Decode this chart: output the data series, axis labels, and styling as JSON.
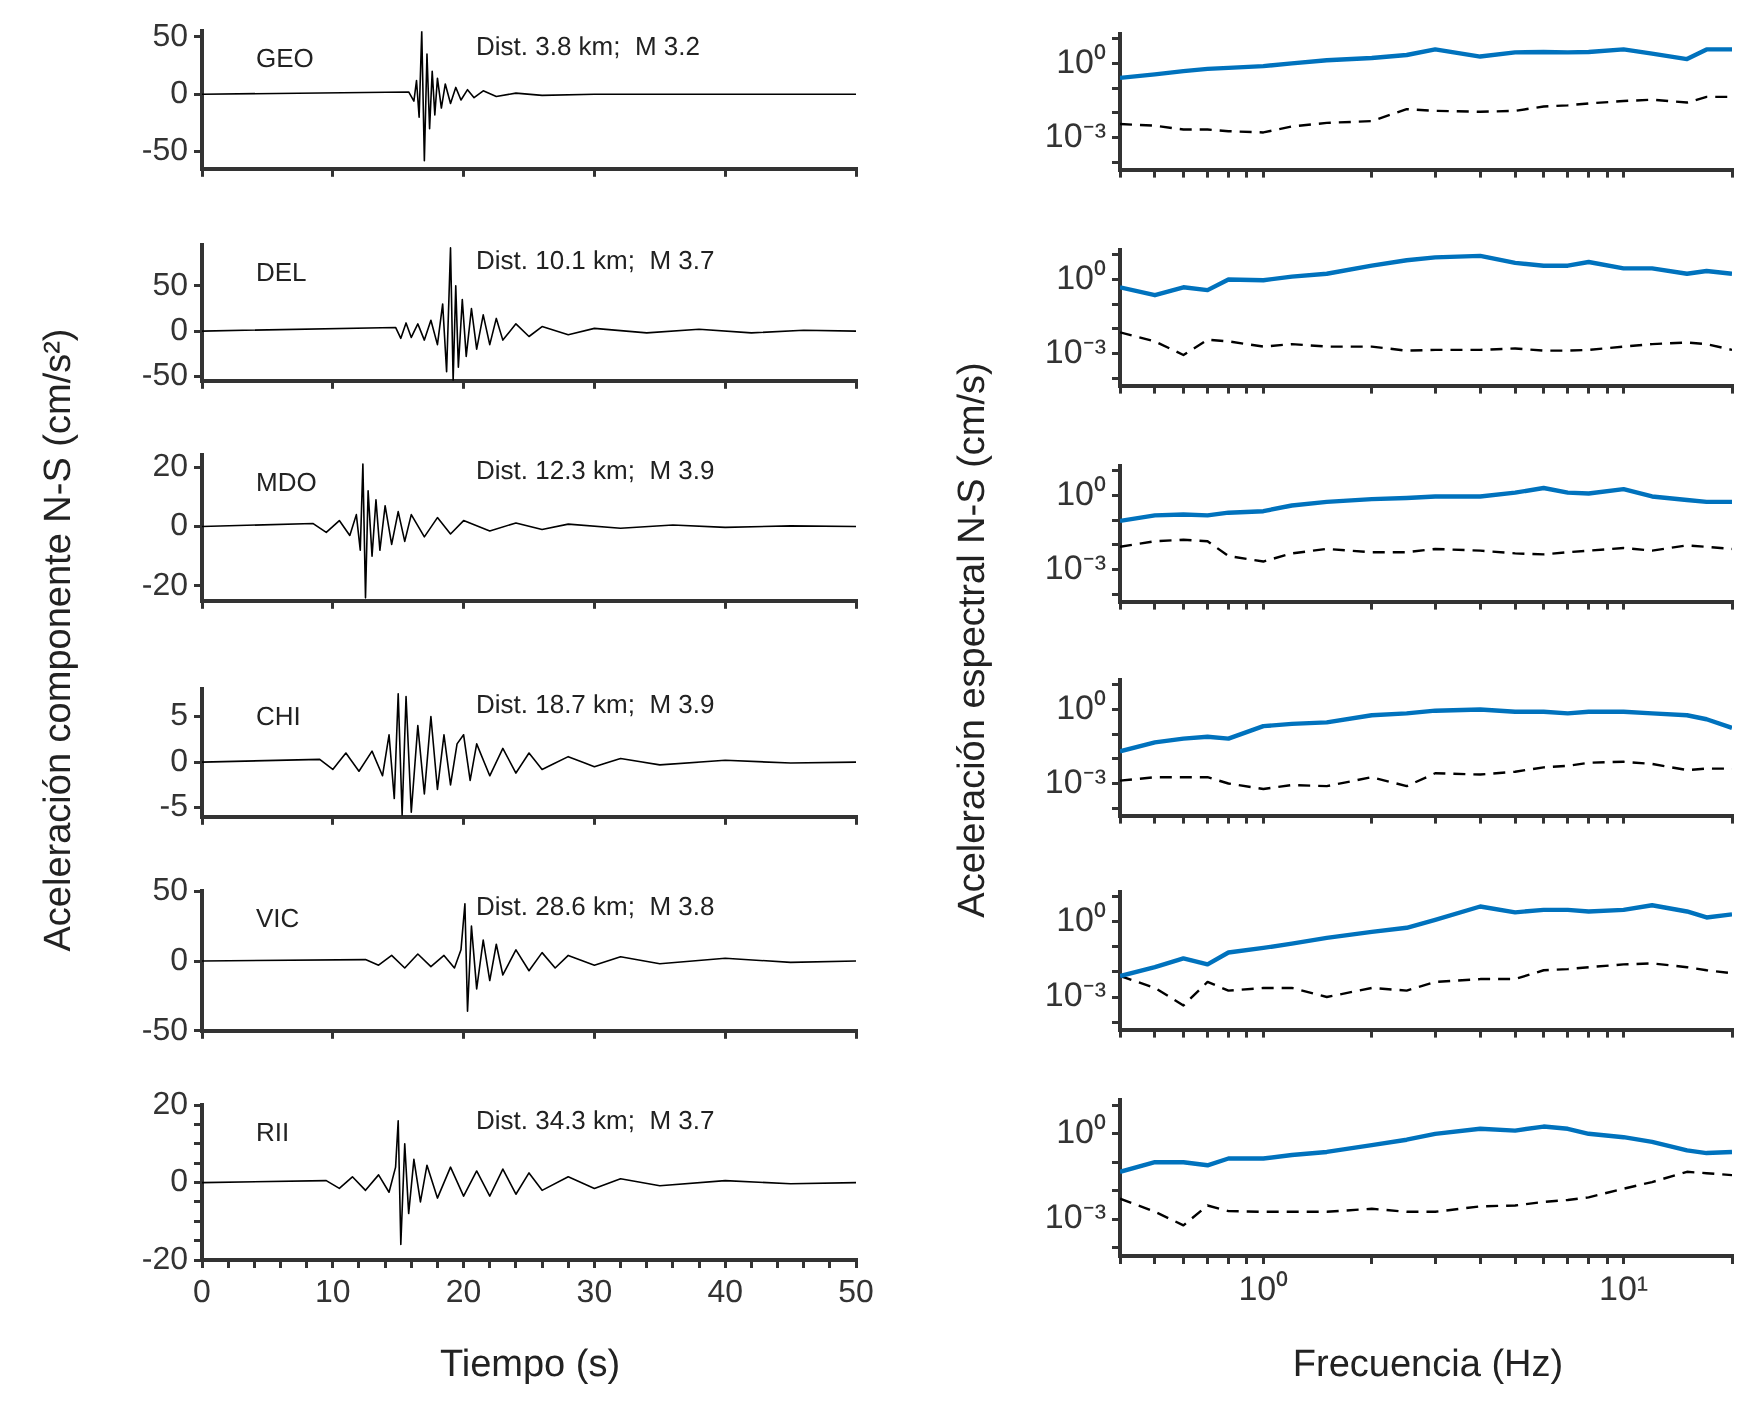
{
  "chart_data": [
    {
      "type": "line",
      "ylabel": "Aceleración componente N-S (cm/s²)",
      "annotations": [
        "GEO",
        "Dist. 3.8 km;  M 3.2"
      ],
      "tick_labels": "y",
      "grid": false,
      "legend": false,
      "marker": "none",
      "xlim": [
        0,
        50
      ],
      "xticks": [
        {
          "value": 0,
          "label": null
        },
        {
          "value": 10,
          "label": null
        },
        {
          "value": 20,
          "label": null
        },
        {
          "value": 30,
          "label": null
        },
        {
          "value": 40,
          "label": null
        },
        {
          "value": 50,
          "label": null
        }
      ],
      "ylim": [
        -65,
        55
      ],
      "yticks": [
        -50,
        0,
        50
      ],
      "x": [
        0,
        15.8,
        16.2,
        16.4,
        16.6,
        16.8,
        17.0,
        17.2,
        17.4,
        17.6,
        17.8,
        18.0,
        18.3,
        18.6,
        19.0,
        19.4,
        19.8,
        20.3,
        20.8,
        21.5,
        22.5,
        24,
        26,
        30,
        40,
        50
      ],
      "series": [
        {
          "color": "#000000",
          "values": [
            0,
            2,
            -6,
            12,
            -20,
            55,
            -58,
            35,
            -30,
            20,
            -18,
            14,
            -12,
            9,
            -8,
            6,
            -5,
            4,
            -3,
            3,
            -2,
            1,
            -1,
            0,
            0,
            0
          ]
        }
      ]
    },
    {
      "type": "line",
      "annotations": [
        "DEL",
        "Dist. 10.1 km;  M 3.7"
      ],
      "tick_labels": "y",
      "grid": false,
      "legend": false,
      "marker": "none",
      "xlim": [
        0,
        50
      ],
      "xticks": [
        {
          "value": 0,
          "label": null
        },
        {
          "value": 10,
          "label": null
        },
        {
          "value": 20,
          "label": null
        },
        {
          "value": 30,
          "label": null
        },
        {
          "value": 40,
          "label": null
        },
        {
          "value": 50,
          "label": null
        }
      ],
      "ylim": [
        -55,
        95
      ],
      "yticks": [
        -50,
        0,
        50
      ],
      "x": [
        0,
        14.8,
        15.2,
        15.6,
        16,
        16.5,
        17,
        17.5,
        18,
        18.4,
        18.7,
        19.0,
        19.2,
        19.4,
        19.6,
        19.9,
        20.2,
        20.6,
        21,
        21.5,
        22,
        22.5,
        23,
        24,
        25,
        26,
        28,
        30,
        34,
        38,
        42,
        46,
        50
      ],
      "series": [
        {
          "color": "#000000",
          "values": [
            0,
            4,
            -8,
            9,
            -7,
            8,
            -10,
            12,
            -15,
            30,
            -45,
            92,
            -55,
            50,
            -40,
            35,
            -28,
            25,
            -20,
            18,
            -15,
            14,
            -10,
            8,
            -6,
            5,
            -4,
            3,
            -2,
            2,
            -2,
            1,
            0
          ]
        }
      ]
    },
    {
      "type": "line",
      "annotations": [
        "MDO",
        "Dist. 12.3 km;  M 3.9"
      ],
      "tick_labels": "y",
      "grid": false,
      "legend": false,
      "marker": "none",
      "xlim": [
        0,
        50
      ],
      "xticks": [
        {
          "value": 0,
          "label": null
        },
        {
          "value": 10,
          "label": null
        },
        {
          "value": 20,
          "label": null
        },
        {
          "value": 30,
          "label": null
        },
        {
          "value": 40,
          "label": null
        },
        {
          "value": 50,
          "label": null
        }
      ],
      "ylim": [
        -25,
        24
      ],
      "yticks": [
        -20,
        0,
        20
      ],
      "x": [
        0,
        8.5,
        9.5,
        10.5,
        11.3,
        11.8,
        12.1,
        12.3,
        12.5,
        12.7,
        13,
        13.3,
        13.6,
        14,
        14.5,
        15,
        15.5,
        16,
        17,
        18,
        19,
        20,
        22,
        24,
        26,
        28,
        32,
        36,
        40,
        45,
        50
      ],
      "series": [
        {
          "color": "#000000",
          "values": [
            0,
            1,
            -2,
            2,
            -3,
            4,
            -8,
            21,
            -24,
            12,
            -10,
            9,
            -8,
            7,
            -6,
            5,
            -5,
            4,
            -3.5,
            3,
            -2.5,
            2,
            -1.5,
            1.2,
            -1,
            0.8,
            -0.6,
            0.5,
            -0.3,
            0.2,
            0
          ]
        }
      ]
    },
    {
      "type": "line",
      "annotations": [
        "CHI",
        "Dist. 18.7 km;  M 3.9"
      ],
      "tick_labels": "y",
      "grid": false,
      "legend": false,
      "marker": "none",
      "xlim": [
        0,
        50
      ],
      "xticks": [
        {
          "value": 0,
          "label": null
        },
        {
          "value": 10,
          "label": null
        },
        {
          "value": 20,
          "label": null
        },
        {
          "value": 30,
          "label": null
        },
        {
          "value": 40,
          "label": null
        },
        {
          "value": 50,
          "label": null
        }
      ],
      "ylim": [
        -6,
        8
      ],
      "yticks": [
        -5,
        0,
        5
      ],
      "x": [
        0,
        9,
        10,
        11,
        12,
        13,
        13.8,
        14.3,
        14.7,
        15.0,
        15.3,
        15.6,
        16,
        16.5,
        17,
        17.5,
        18,
        18.5,
        19,
        19.5,
        20,
        20.5,
        21,
        22,
        23,
        24,
        25,
        26,
        28,
        30,
        32,
        35,
        40,
        45,
        50
      ],
      "series": [
        {
          "color": "#000000",
          "values": [
            0,
            0.3,
            -0.8,
            1,
            -1,
            1.2,
            -1.5,
            3,
            -4,
            7.5,
            -5.8,
            7.2,
            -5.5,
            4,
            -3.5,
            5,
            -3,
            3,
            -2.5,
            2,
            3,
            -2,
            2,
            -1.5,
            1.5,
            -1.2,
            1,
            -0.8,
            0.6,
            -0.5,
            0.4,
            -0.3,
            0.2,
            -0.1,
            0
          ]
        }
      ]
    },
    {
      "type": "line",
      "annotations": [
        "VIC",
        "Dist. 28.6 km;  M 3.8"
      ],
      "tick_labels": "y",
      "grid": false,
      "legend": false,
      "marker": "none",
      "xlim": [
        0,
        50
      ],
      "xticks": [
        {
          "value": 0,
          "label": null
        },
        {
          "value": 10,
          "label": null
        },
        {
          "value": 20,
          "label": null
        },
        {
          "value": 30,
          "label": null
        },
        {
          "value": 40,
          "label": null
        },
        {
          "value": 50,
          "label": null
        }
      ],
      "ylim": [
        -50,
        50
      ],
      "yticks": [
        -50,
        0,
        50
      ],
      "x": [
        0,
        12.5,
        13.5,
        14.5,
        15.5,
        16.5,
        17.5,
        18.5,
        19.3,
        19.8,
        20.1,
        20.3,
        20.6,
        21,
        21.5,
        22,
        22.5,
        23,
        24,
        25,
        26,
        27,
        28,
        30,
        32,
        35,
        40,
        45,
        50
      ],
      "series": [
        {
          "color": "#000000",
          "values": [
            0,
            1,
            -3,
            4,
            -5,
            5,
            -4,
            4,
            -5,
            8,
            41,
            -36,
            25,
            -20,
            15,
            -14,
            12,
            -10,
            8,
            -7,
            6,
            -5,
            4,
            -3,
            3,
            -2,
            2,
            -1,
            0
          ]
        }
      ]
    },
    {
      "type": "line",
      "xlabel": "Tiempo (s)",
      "annotations": [
        "RII",
        "Dist. 34.3 km;  M 3.7"
      ],
      "grid": false,
      "legend": false,
      "marker": "none",
      "xlim": [
        0,
        50
      ],
      "xticks": [
        0,
        {
          "value": 2,
          "label": null
        },
        {
          "value": 4,
          "label": null
        },
        {
          "value": 6,
          "label": null
        },
        {
          "value": 8,
          "label": null
        },
        10,
        {
          "value": 12,
          "label": null
        },
        {
          "value": 14,
          "label": null
        },
        {
          "value": 16,
          "label": null
        },
        {
          "value": 18,
          "label": null
        },
        20,
        {
          "value": 22,
          "label": null
        },
        {
          "value": 24,
          "label": null
        },
        {
          "value": 26,
          "label": null
        },
        {
          "value": 28,
          "label": null
        },
        30,
        {
          "value": 32,
          "label": null
        },
        {
          "value": 34,
          "label": null
        },
        {
          "value": 36,
          "label": null
        },
        {
          "value": 38,
          "label": null
        },
        40,
        {
          "value": 42,
          "label": null
        },
        {
          "value": 44,
          "label": null
        },
        {
          "value": 46,
          "label": null
        },
        {
          "value": 48,
          "label": null
        },
        50
      ],
      "ylim": [
        -20,
        20
      ],
      "yticks": [
        -20,
        {
          "value": -15,
          "label": null
        },
        {
          "value": -10,
          "label": null
        },
        {
          "value": -5,
          "label": null
        },
        0,
        {
          "value": 5,
          "label": null
        },
        {
          "value": 10,
          "label": null
        },
        {
          "value": 15,
          "label": null
        },
        20
      ],
      "x": [
        0,
        9.5,
        10.5,
        11.5,
        12.5,
        13.5,
        14.3,
        14.8,
        15.0,
        15.2,
        15.5,
        15.8,
        16.2,
        16.7,
        17.2,
        18,
        19,
        20,
        21,
        22,
        23,
        24,
        25,
        26,
        28,
        30,
        32,
        35,
        40,
        45,
        50
      ],
      "series": [
        {
          "color": "#000000",
          "values": [
            0,
            0.5,
            -1.5,
            1.5,
            -2,
            2,
            -2.5,
            4,
            16,
            -16,
            10,
            -8,
            6,
            -5,
            4.5,
            -4,
            4,
            -3.5,
            3,
            -3.5,
            3.5,
            -3,
            2.5,
            -2,
            1.5,
            -1.5,
            1,
            -0.8,
            0.5,
            -0.3,
            0
          ]
        }
      ]
    },
    {
      "type": "line",
      "ylabel": "Aceleración espectral N-S  (cm/s)",
      "log": "xy",
      "tick_labels": "y",
      "grid": false,
      "legend": false,
      "marker": "none",
      "xlim": [
        0.4,
        20
      ],
      "xticks": [
        {
          "value": 0.4,
          "label": null
        },
        {
          "value": 0.5,
          "label": null
        },
        {
          "value": 0.6,
          "label": null
        },
        {
          "value": 0.7,
          "label": null
        },
        {
          "value": 0.8,
          "label": null
        },
        {
          "value": 0.9,
          "label": null
        },
        {
          "value": 1,
          "label": null
        },
        {
          "value": 2,
          "label": null
        },
        {
          "value": 3,
          "label": null
        },
        {
          "value": 4,
          "label": null
        },
        {
          "value": 5,
          "label": null
        },
        {
          "value": 6,
          "label": null
        },
        {
          "value": 7,
          "label": null
        },
        {
          "value": 8,
          "label": null
        },
        {
          "value": 9,
          "label": null
        },
        {
          "value": 10,
          "label": null
        },
        {
          "value": 20,
          "label": null
        }
      ],
      "ylim": [
        5e-05,
        15
      ],
      "yticks": [
        {
          "value": 0.0001,
          "label": null
        },
        {
          "value": 0.001,
          "label": "10⁻³"
        },
        {
          "value": 0.01,
          "label": null
        },
        {
          "value": 0.1,
          "label": null
        },
        {
          "value": 1,
          "label": "10⁰"
        },
        {
          "value": 10,
          "label": null
        }
      ],
      "x": [
        0.4,
        0.5,
        0.6,
        0.7,
        0.8,
        1,
        1.2,
        1.5,
        2,
        2.5,
        3,
        4,
        5,
        6,
        7,
        8,
        10,
        12,
        15,
        17,
        20
      ],
      "series": [
        {
          "color": "#0072bd",
          "line_style": "solid",
          "values": [
            0.26,
            0.36,
            0.49,
            0.6,
            0.66,
            0.78,
            1,
            1.35,
            1.66,
            2.2,
            3.7,
            1.9,
            2.8,
            2.9,
            2.8,
            2.9,
            3.7,
            2.5,
            1.5,
            3.7,
            3.7
          ]
        },
        {
          "color": "#000000",
          "line_style": "dashed",
          "values": [
            0.0035,
            0.003,
            0.0021,
            0.0021,
            0.0018,
            0.0016,
            0.0028,
            0.0039,
            0.0046,
            0.014,
            0.012,
            0.011,
            0.012,
            0.018,
            0.02,
            0.024,
            0.03,
            0.034,
            0.026,
            0.044,
            0.044
          ]
        }
      ]
    },
    {
      "type": "line",
      "log": "xy",
      "tick_labels": "y",
      "grid": false,
      "legend": false,
      "marker": "none",
      "xlim": [
        0.4,
        20
      ],
      "xticks": [
        {
          "value": 0.4,
          "label": null
        },
        {
          "value": 0.5,
          "label": null
        },
        {
          "value": 0.6,
          "label": null
        },
        {
          "value": 0.7,
          "label": null
        },
        {
          "value": 0.8,
          "label": null
        },
        {
          "value": 0.9,
          "label": null
        },
        {
          "value": 1,
          "label": null
        },
        {
          "value": 2,
          "label": null
        },
        {
          "value": 3,
          "label": null
        },
        {
          "value": 4,
          "label": null
        },
        {
          "value": 5,
          "label": null
        },
        {
          "value": 6,
          "label": null
        },
        {
          "value": 7,
          "label": null
        },
        {
          "value": 8,
          "label": null
        },
        {
          "value": 9,
          "label": null
        },
        {
          "value": 10,
          "label": null
        },
        {
          "value": 20,
          "label": null
        }
      ],
      "ylim": [
        5e-05,
        15
      ],
      "yticks": [
        {
          "value": 0.0001,
          "label": null
        },
        {
          "value": 0.001,
          "label": "10⁻³"
        },
        {
          "value": 0.01,
          "label": null
        },
        {
          "value": 0.1,
          "label": null
        },
        {
          "value": 1,
          "label": "10⁰"
        },
        {
          "value": 10,
          "label": null
        }
      ],
      "x": [
        0.4,
        0.5,
        0.6,
        0.7,
        0.8,
        1,
        1.2,
        1.5,
        2,
        2.5,
        3,
        4,
        5,
        6,
        7,
        8,
        10,
        12,
        15,
        17,
        20
      ],
      "series": [
        {
          "color": "#0072bd",
          "line_style": "solid",
          "values": [
            0.48,
            0.23,
            0.48,
            0.37,
            1.0,
            0.93,
            1.3,
            1.7,
            3.6,
            6,
            7.8,
            9,
            4.7,
            3.6,
            3.6,
            5.1,
            2.8,
            2.8,
            1.7,
            2.2,
            1.7
          ]
        },
        {
          "color": "#000000",
          "line_style": "dashed",
          "values": [
            0.0072,
            0.0031,
            0.00087,
            0.0036,
            0.0031,
            0.0019,
            0.0024,
            0.0019,
            0.0019,
            0.0013,
            0.0014,
            0.0014,
            0.0016,
            0.0013,
            0.0013,
            0.0014,
            0.0019,
            0.0024,
            0.0028,
            0.0024,
            0.0014
          ]
        }
      ]
    },
    {
      "type": "line",
      "log": "xy",
      "tick_labels": "y",
      "grid": false,
      "legend": false,
      "marker": "none",
      "xlim": [
        0.4,
        20
      ],
      "xticks": [
        {
          "value": 0.4,
          "label": null
        },
        {
          "value": 0.5,
          "label": null
        },
        {
          "value": 0.6,
          "label": null
        },
        {
          "value": 0.7,
          "label": null
        },
        {
          "value": 0.8,
          "label": null
        },
        {
          "value": 0.9,
          "label": null
        },
        {
          "value": 1,
          "label": null
        },
        {
          "value": 2,
          "label": null
        },
        {
          "value": 3,
          "label": null
        },
        {
          "value": 4,
          "label": null
        },
        {
          "value": 5,
          "label": null
        },
        {
          "value": 6,
          "label": null
        },
        {
          "value": 7,
          "label": null
        },
        {
          "value": 8,
          "label": null
        },
        {
          "value": 9,
          "label": null
        },
        {
          "value": 10,
          "label": null
        },
        {
          "value": 20,
          "label": null
        }
      ],
      "ylim": [
        5e-05,
        15
      ],
      "yticks": [
        {
          "value": 0.0001,
          "label": null
        },
        {
          "value": 0.001,
          "label": "10⁻³"
        },
        {
          "value": 0.01,
          "label": null
        },
        {
          "value": 0.1,
          "label": null
        },
        {
          "value": 1,
          "label": "10⁰"
        },
        {
          "value": 10,
          "label": null
        }
      ],
      "x": [
        0.4,
        0.5,
        0.6,
        0.7,
        0.8,
        1,
        1.2,
        1.5,
        2,
        2.5,
        3,
        4,
        5,
        6,
        7,
        8,
        10,
        12,
        15,
        17,
        20
      ],
      "series": [
        {
          "color": "#0072bd",
          "line_style": "solid",
          "values": [
            0.093,
            0.155,
            0.17,
            0.155,
            0.2,
            0.23,
            0.39,
            0.55,
            0.71,
            0.79,
            0.91,
            0.91,
            1.3,
            2,
            1.3,
            1.2,
            1.8,
            0.91,
            0.65,
            0.55,
            0.55
          ]
        },
        {
          "color": "#000000",
          "line_style": "dashed",
          "values": [
            0.0083,
            0.014,
            0.016,
            0.014,
            0.0035,
            0.0021,
            0.0045,
            0.0068,
            0.005,
            0.005,
            0.0068,
            0.0058,
            0.0045,
            0.0041,
            0.005,
            0.0058,
            0.0074,
            0.0058,
            0.0095,
            0.0083,
            0.0068
          ]
        }
      ]
    },
    {
      "type": "line",
      "log": "xy",
      "tick_labels": "y",
      "grid": false,
      "legend": false,
      "marker": "none",
      "xlim": [
        0.4,
        20
      ],
      "xticks": [
        {
          "value": 0.4,
          "label": null
        },
        {
          "value": 0.5,
          "label": null
        },
        {
          "value": 0.6,
          "label": null
        },
        {
          "value": 0.7,
          "label": null
        },
        {
          "value": 0.8,
          "label": null
        },
        {
          "value": 0.9,
          "label": null
        },
        {
          "value": 1,
          "label": null
        },
        {
          "value": 2,
          "label": null
        },
        {
          "value": 3,
          "label": null
        },
        {
          "value": 4,
          "label": null
        },
        {
          "value": 5,
          "label": null
        },
        {
          "value": 6,
          "label": null
        },
        {
          "value": 7,
          "label": null
        },
        {
          "value": 8,
          "label": null
        },
        {
          "value": 9,
          "label": null
        },
        {
          "value": 10,
          "label": null
        },
        {
          "value": 20,
          "label": null
        }
      ],
      "ylim": [
        5e-05,
        15
      ],
      "yticks": [
        {
          "value": 0.0001,
          "label": null
        },
        {
          "value": 0.001,
          "label": "10⁻³"
        },
        {
          "value": 0.01,
          "label": null
        },
        {
          "value": 0.1,
          "label": null
        },
        {
          "value": 1,
          "label": "10⁰"
        },
        {
          "value": 10,
          "label": null
        }
      ],
      "x": [
        0.4,
        0.5,
        0.6,
        0.7,
        0.8,
        1,
        1.2,
        1.5,
        2,
        2.5,
        3,
        4,
        5,
        6,
        7,
        8,
        10,
        12,
        15,
        17,
        20
      ],
      "series": [
        {
          "color": "#0072bd",
          "line_style": "solid",
          "values": [
            0.02,
            0.046,
            0.066,
            0.078,
            0.066,
            0.21,
            0.26,
            0.3,
            0.58,
            0.69,
            0.89,
            1,
            0.81,
            0.81,
            0.69,
            0.81,
            0.81,
            0.69,
            0.58,
            0.4,
            0.18
          ]
        },
        {
          "color": "#000000",
          "line_style": "dashed",
          "values": [
            0.0013,
            0.0018,
            0.0018,
            0.0018,
            0.001,
            0.0006,
            0.00087,
            0.00078,
            0.0018,
            0.00078,
            0.0026,
            0.0023,
            0.003,
            0.0045,
            0.0052,
            0.0069,
            0.0076,
            0.0062,
            0.0035,
            0.004,
            0.004
          ]
        }
      ]
    },
    {
      "type": "line",
      "log": "xy",
      "tick_labels": "y",
      "grid": false,
      "legend": false,
      "marker": "none",
      "xlim": [
        0.4,
        20
      ],
      "xticks": [
        {
          "value": 0.4,
          "label": null
        },
        {
          "value": 0.5,
          "label": null
        },
        {
          "value": 0.6,
          "label": null
        },
        {
          "value": 0.7,
          "label": null
        },
        {
          "value": 0.8,
          "label": null
        },
        {
          "value": 0.9,
          "label": null
        },
        {
          "value": 1,
          "label": null
        },
        {
          "value": 2,
          "label": null
        },
        {
          "value": 3,
          "label": null
        },
        {
          "value": 4,
          "label": null
        },
        {
          "value": 5,
          "label": null
        },
        {
          "value": 6,
          "label": null
        },
        {
          "value": 7,
          "label": null
        },
        {
          "value": 8,
          "label": null
        },
        {
          "value": 9,
          "label": null
        },
        {
          "value": 10,
          "label": null
        },
        {
          "value": 20,
          "label": null
        }
      ],
      "ylim": [
        5e-05,
        15
      ],
      "yticks": [
        {
          "value": 0.0001,
          "label": null
        },
        {
          "value": 0.001,
          "label": "10⁻³"
        },
        {
          "value": 0.01,
          "label": null
        },
        {
          "value": 0.1,
          "label": null
        },
        {
          "value": 1,
          "label": "10⁰"
        },
        {
          "value": 10,
          "label": null
        }
      ],
      "x": [
        0.4,
        0.5,
        0.6,
        0.7,
        0.8,
        1,
        1.2,
        1.5,
        2,
        2.5,
        3,
        4,
        5,
        6,
        7,
        8,
        10,
        12,
        15,
        17,
        20
      ],
      "series": [
        {
          "color": "#0072bd",
          "line_style": "solid",
          "values": [
            0.0069,
            0.0155,
            0.035,
            0.02,
            0.06,
            0.091,
            0.135,
            0.23,
            0.4,
            0.58,
            1.2,
            4.1,
            2.4,
            3,
            3,
            2.6,
            3,
            4.6,
            2.6,
            1.5,
            2
          ]
        },
        {
          "color": "#000000",
          "line_style": "dashed",
          "values": [
            0.0069,
            0.0023,
            0.00046,
            0.004,
            0.0018,
            0.0023,
            0.0023,
            0.001,
            0.0023,
            0.0018,
            0.004,
            0.0052,
            0.0052,
            0.0117,
            0.013,
            0.0155,
            0.02,
            0.022,
            0.0155,
            0.0117,
            0.0089
          ]
        }
      ]
    },
    {
      "type": "line",
      "xlabel": "Frecuencia (Hz)",
      "log": "xy",
      "grid": false,
      "legend": false,
      "marker": "none",
      "xlim": [
        0.4,
        20
      ],
      "xticks": [
        {
          "value": 0.4,
          "label": null
        },
        {
          "value": 0.5,
          "label": null
        },
        {
          "value": 0.6,
          "label": null
        },
        {
          "value": 0.7,
          "label": null
        },
        {
          "value": 0.8,
          "label": null
        },
        {
          "value": 0.9,
          "label": null
        },
        {
          "value": 1,
          "label": "10⁰"
        },
        {
          "value": 2,
          "label": null
        },
        {
          "value": 3,
          "label": null
        },
        {
          "value": 4,
          "label": null
        },
        {
          "value": 5,
          "label": null
        },
        {
          "value": 6,
          "label": null
        },
        {
          "value": 7,
          "label": null
        },
        {
          "value": 8,
          "label": null
        },
        {
          "value": 9,
          "label": null
        },
        {
          "value": 10,
          "label": "10¹"
        },
        {
          "value": 20,
          "label": null
        }
      ],
      "ylim": [
        5e-05,
        15
      ],
      "yticks": [
        {
          "value": 0.0001,
          "label": null
        },
        {
          "value": 0.001,
          "label": "10⁻³"
        },
        {
          "value": 0.01,
          "label": null
        },
        {
          "value": 0.1,
          "label": null
        },
        {
          "value": 1,
          "label": "10⁰"
        },
        {
          "value": 10,
          "label": null
        }
      ],
      "x": [
        0.4,
        0.5,
        0.6,
        0.7,
        0.8,
        1,
        1.2,
        1.5,
        2,
        2.5,
        3,
        4,
        5,
        6,
        7,
        8,
        10,
        12,
        15,
        17,
        20
      ],
      "series": [
        {
          "color": "#0072bd",
          "line_style": "solid",
          "values": [
            0.046,
            0.1,
            0.1,
            0.078,
            0.135,
            0.135,
            0.18,
            0.23,
            0.4,
            0.62,
            1,
            1.5,
            1.3,
            1.8,
            1.5,
            1,
            0.76,
            0.52,
            0.26,
            0.21,
            0.23
          ]
        },
        {
          "color": "#000000",
          "line_style": "dashed",
          "values": [
            0.0052,
            0.0018,
            0.0006,
            0.003,
            0.0019,
            0.0018,
            0.0018,
            0.0018,
            0.0023,
            0.0018,
            0.0018,
            0.0028,
            0.003,
            0.004,
            0.0047,
            0.0058,
            0.0117,
            0.02,
            0.046,
            0.041,
            0.035
          ]
        }
      ]
    }
  ]
}
